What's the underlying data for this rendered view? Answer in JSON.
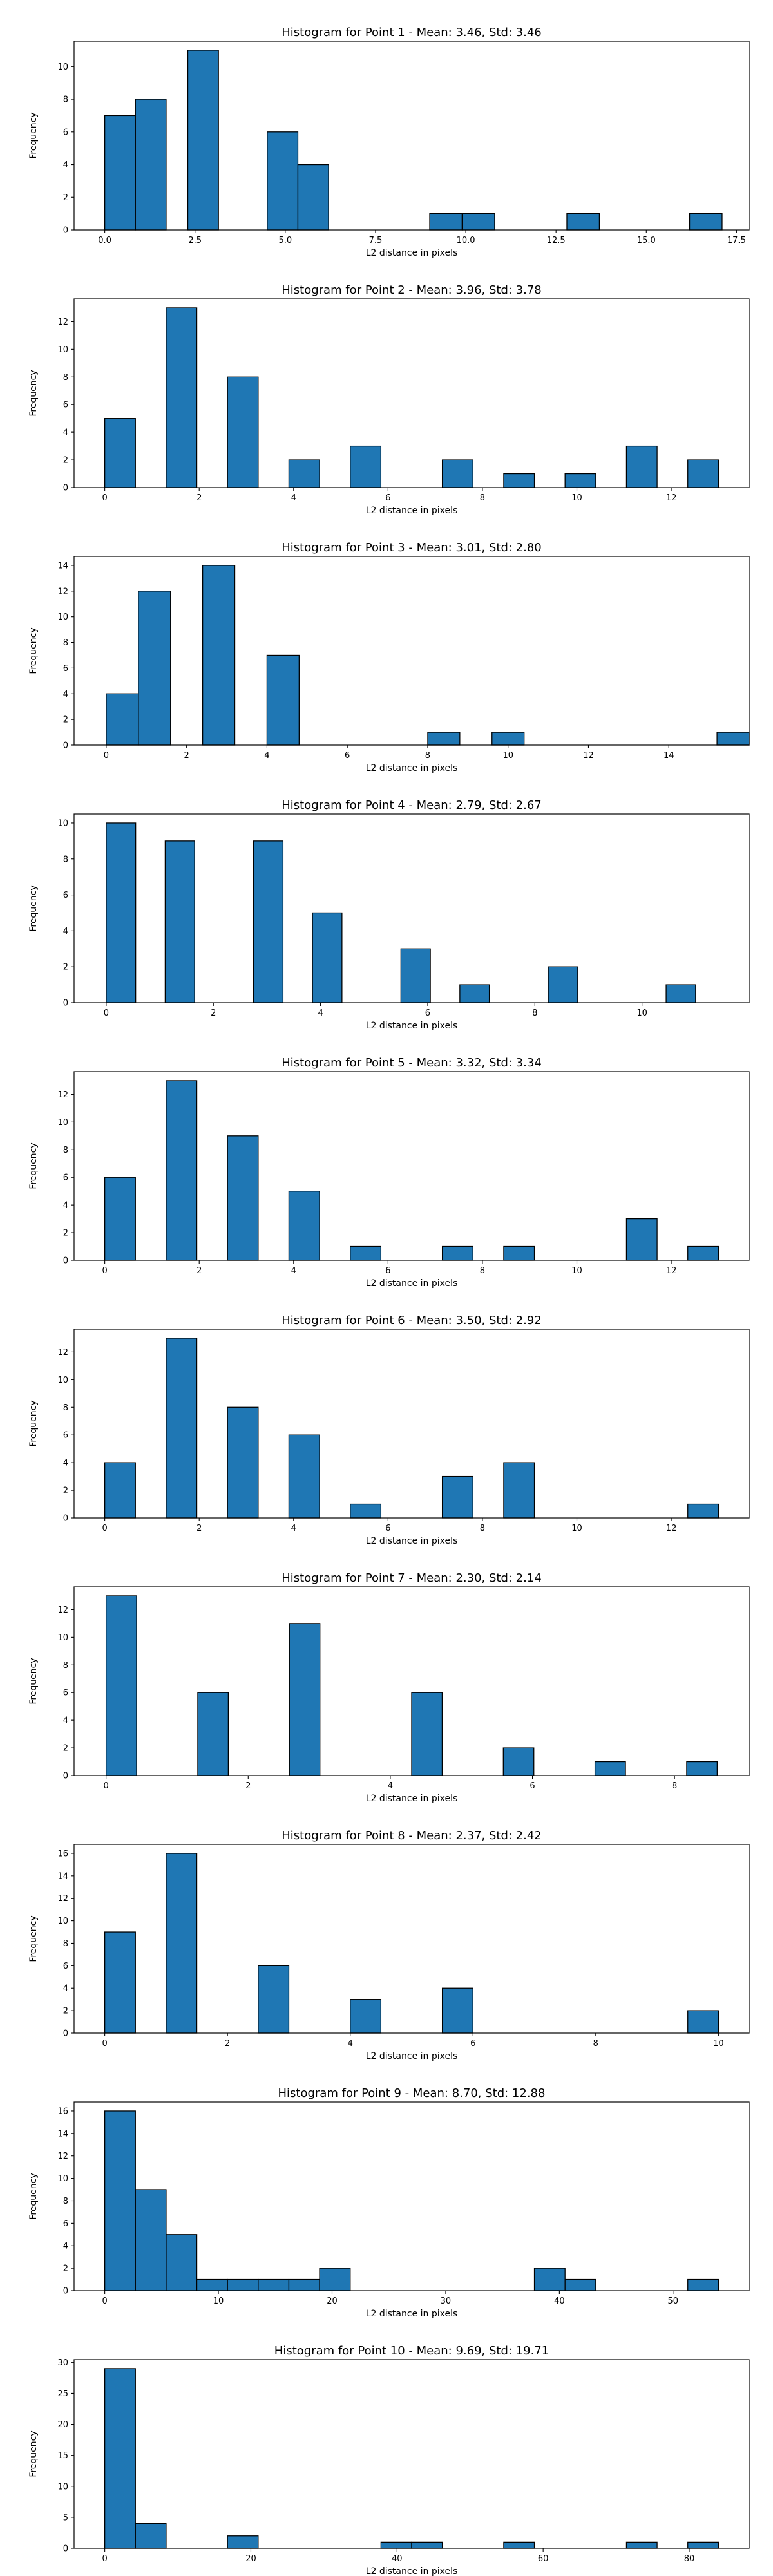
{
  "chart_data": [
    {
      "type": "bar",
      "title": "Histogram for Point 1 - Mean: 3.46, Std: 3.46",
      "xlabel": "L2 distance in pixels",
      "ylabel": "Frequency",
      "xlim": [
        -0.85,
        17.85
      ],
      "ylim": [
        0,
        11.55
      ],
      "xticks": [
        0.0,
        2.5,
        5.0,
        7.5,
        10.0,
        12.5,
        15.0,
        17.5
      ],
      "xtick_labels": [
        "0.0",
        "2.5",
        "5.0",
        "7.5",
        "10.0",
        "12.5",
        "15.0",
        "17.5"
      ],
      "yticks": [
        0,
        2,
        4,
        6,
        8,
        10
      ],
      "bins": [
        [
          0.0,
          0.85,
          7
        ],
        [
          0.85,
          1.7,
          8
        ],
        [
          2.3,
          3.15,
          11
        ],
        [
          4.5,
          5.35,
          6
        ],
        [
          5.35,
          6.2,
          4
        ],
        [
          9.0,
          9.9,
          1
        ],
        [
          9.9,
          10.8,
          1
        ],
        [
          12.8,
          13.7,
          1
        ],
        [
          16.2,
          17.1,
          1
        ]
      ],
      "grid": false,
      "legend": "none"
    },
    {
      "type": "bar",
      "title": "Histogram for Point 2 - Mean: 3.96, Std: 3.78",
      "xlabel": "L2 distance in pixels",
      "ylabel": "Frequency",
      "xlim": [
        -0.65,
        13.65
      ],
      "ylim": [
        0,
        13.65
      ],
      "xticks": [
        0,
        2,
        4,
        6,
        8,
        10,
        12
      ],
      "xtick_labels": [
        "0",
        "2",
        "4",
        "6",
        "8",
        "10",
        "12"
      ],
      "yticks": [
        0,
        2,
        4,
        6,
        8,
        10,
        12
      ],
      "bins": [
        [
          0.0,
          0.65,
          5
        ],
        [
          1.3,
          1.95,
          13
        ],
        [
          2.6,
          3.25,
          8
        ],
        [
          3.9,
          4.55,
          2
        ],
        [
          5.2,
          5.85,
          3
        ],
        [
          7.15,
          7.8,
          2
        ],
        [
          8.45,
          9.1,
          1
        ],
        [
          9.75,
          10.4,
          1
        ],
        [
          11.05,
          11.7,
          3
        ],
        [
          12.35,
          13.0,
          2
        ]
      ],
      "grid": false,
      "legend": "none"
    },
    {
      "type": "bar",
      "title": "Histogram for Point 3 - Mean: 3.01, Std: 2.80",
      "xlabel": "L2 distance in pixels",
      "ylabel": "Frequency",
      "xlim": [
        -0.8,
        16.0
      ],
      "ylim": [
        0,
        14.7
      ],
      "xticks": [
        0,
        2,
        4,
        6,
        8,
        10,
        12,
        14
      ],
      "xtick_labels": [
        "0",
        "2",
        "4",
        "6",
        "8",
        "10",
        "12",
        "14"
      ],
      "yticks": [
        0,
        2,
        4,
        6,
        8,
        10,
        12,
        14
      ],
      "bins": [
        [
          0.0,
          0.8,
          4
        ],
        [
          0.8,
          1.6,
          12
        ],
        [
          2.4,
          3.2,
          14
        ],
        [
          4.0,
          4.8,
          7
        ],
        [
          8.0,
          8.8,
          1
        ],
        [
          9.6,
          10.4,
          1
        ],
        [
          15.2,
          16.0,
          1
        ]
      ],
      "grid": false,
      "legend": "none"
    },
    {
      "type": "bar",
      "title": "Histogram for Point 4 - Mean: 2.79, Std: 2.67",
      "xlabel": "L2 distance in pixels",
      "ylabel": "Frequency",
      "xlim": [
        -0.6,
        12.0
      ],
      "ylim": [
        0,
        10.5
      ],
      "xticks": [
        0,
        2,
        4,
        6,
        8,
        10
      ],
      "xtick_labels": [
        "0",
        "2",
        "4",
        "6",
        "8",
        "10"
      ],
      "yticks": [
        0,
        2,
        4,
        6,
        8,
        10
      ],
      "bins": [
        [
          0.0,
          0.55,
          10
        ],
        [
          1.1,
          1.65,
          9
        ],
        [
          2.75,
          3.3,
          9
        ],
        [
          3.85,
          4.4,
          5
        ],
        [
          5.5,
          6.05,
          3
        ],
        [
          6.6,
          7.15,
          1
        ],
        [
          8.25,
          8.8,
          2
        ],
        [
          10.45,
          11.0,
          1
        ]
      ],
      "grid": false,
      "legend": "none"
    },
    {
      "type": "bar",
      "title": "Histogram for Point 5 - Mean: 3.32, Std: 3.34",
      "xlabel": "L2 distance in pixels",
      "ylabel": "Frequency",
      "xlim": [
        -0.65,
        13.65
      ],
      "ylim": [
        0,
        13.65
      ],
      "xticks": [
        0,
        2,
        4,
        6,
        8,
        10,
        12
      ],
      "xtick_labels": [
        "0",
        "2",
        "4",
        "6",
        "8",
        "10",
        "12"
      ],
      "yticks": [
        0,
        2,
        4,
        6,
        8,
        10,
        12
      ],
      "bins": [
        [
          0.0,
          0.65,
          6
        ],
        [
          1.3,
          1.95,
          13
        ],
        [
          2.6,
          3.25,
          9
        ],
        [
          3.9,
          4.55,
          5
        ],
        [
          5.2,
          5.85,
          1
        ],
        [
          7.15,
          7.8,
          1
        ],
        [
          8.45,
          9.1,
          1
        ],
        [
          11.05,
          11.7,
          3
        ],
        [
          12.35,
          13.0,
          1
        ]
      ],
      "grid": false,
      "legend": "none"
    },
    {
      "type": "bar",
      "title": "Histogram for Point 6 - Mean: 3.50, Std: 2.92",
      "xlabel": "L2 distance in pixels",
      "ylabel": "Frequency",
      "xlim": [
        -0.65,
        13.65
      ],
      "ylim": [
        0,
        13.65
      ],
      "xticks": [
        0,
        2,
        4,
        6,
        8,
        10,
        12
      ],
      "xtick_labels": [
        "0",
        "2",
        "4",
        "6",
        "8",
        "10",
        "12"
      ],
      "yticks": [
        0,
        2,
        4,
        6,
        8,
        10,
        12
      ],
      "bins": [
        [
          0.0,
          0.65,
          4
        ],
        [
          1.3,
          1.95,
          13
        ],
        [
          2.6,
          3.25,
          8
        ],
        [
          3.9,
          4.55,
          6
        ],
        [
          5.2,
          5.85,
          1
        ],
        [
          7.15,
          7.8,
          3
        ],
        [
          8.45,
          9.1,
          4
        ],
        [
          12.35,
          13.0,
          1
        ]
      ],
      "grid": false,
      "legend": "none"
    },
    {
      "type": "bar",
      "title": "Histogram for Point 7 - Mean: 2.30, Std: 2.14",
      "xlabel": "L2 distance in pixels",
      "ylabel": "Frequency",
      "xlim": [
        -0.45,
        9.05
      ],
      "ylim": [
        0,
        13.65
      ],
      "xticks": [
        0,
        2,
        4,
        6,
        8
      ],
      "xtick_labels": [
        "0",
        "2",
        "4",
        "6",
        "8"
      ],
      "yticks": [
        0,
        2,
        4,
        6,
        8,
        10,
        12
      ],
      "bins": [
        [
          0.0,
          0.43,
          13
        ],
        [
          1.29,
          1.72,
          6
        ],
        [
          2.58,
          3.01,
          11
        ],
        [
          4.3,
          4.73,
          6
        ],
        [
          5.59,
          6.02,
          2
        ],
        [
          6.88,
          7.31,
          1
        ],
        [
          8.17,
          8.6,
          1
        ]
      ],
      "grid": false,
      "legend": "none"
    },
    {
      "type": "bar",
      "title": "Histogram for Point 8 - Mean: 2.37, Std: 2.42",
      "xlabel": "L2 distance in pixels",
      "ylabel": "Frequency",
      "xlim": [
        -0.5,
        10.5
      ],
      "ylim": [
        0,
        16.8
      ],
      "xticks": [
        0,
        2,
        4,
        6,
        8,
        10
      ],
      "xtick_labels": [
        "0",
        "2",
        "4",
        "6",
        "8",
        "10"
      ],
      "yticks": [
        0,
        2,
        4,
        6,
        8,
        10,
        12,
        14,
        16
      ],
      "bins": [
        [
          0.0,
          0.5,
          9
        ],
        [
          1.0,
          1.5,
          16
        ],
        [
          2.5,
          3.0,
          6
        ],
        [
          4.0,
          4.5,
          3
        ],
        [
          5.5,
          6.0,
          4
        ],
        [
          9.5,
          10.0,
          2
        ]
      ],
      "grid": false,
      "legend": "none"
    },
    {
      "type": "bar",
      "title": "Histogram for Point 9 - Mean: 8.70, Std: 12.88",
      "xlabel": "L2 distance in pixels",
      "ylabel": "Frequency",
      "xlim": [
        -2.7,
        56.7
      ],
      "ylim": [
        0,
        16.8
      ],
      "xticks": [
        0,
        10,
        20,
        30,
        40,
        50
      ],
      "xtick_labels": [
        "0",
        "10",
        "20",
        "30",
        "40",
        "50"
      ],
      "yticks": [
        0,
        2,
        4,
        6,
        8,
        10,
        12,
        14,
        16
      ],
      "bins": [
        [
          0.0,
          2.7,
          16
        ],
        [
          2.7,
          5.4,
          9
        ],
        [
          5.4,
          8.1,
          5
        ],
        [
          8.1,
          10.8,
          1
        ],
        [
          10.8,
          13.5,
          1
        ],
        [
          13.5,
          16.2,
          1
        ],
        [
          16.2,
          18.9,
          1
        ],
        [
          18.9,
          21.6,
          2
        ],
        [
          37.8,
          40.5,
          2
        ],
        [
          40.5,
          43.2,
          1
        ],
        [
          51.3,
          54.0,
          1
        ]
      ],
      "grid": false,
      "legend": "none"
    },
    {
      "type": "bar",
      "title": "Histogram for Point 10 - Mean: 9.69, Std: 19.71",
      "xlabel": "L2 distance in pixels",
      "ylabel": "Frequency",
      "xlim": [
        -4.2,
        88.2
      ],
      "ylim": [
        0,
        30.45
      ],
      "xticks": [
        0,
        20,
        40,
        60,
        80
      ],
      "xtick_labels": [
        "0",
        "20",
        "40",
        "60",
        "80"
      ],
      "yticks": [
        0,
        5,
        10,
        15,
        20,
        25,
        30
      ],
      "bins": [
        [
          0.0,
          4.2,
          29
        ],
        [
          4.2,
          8.4,
          4
        ],
        [
          16.8,
          21.0,
          2
        ],
        [
          37.8,
          42.0,
          1
        ],
        [
          42.0,
          46.2,
          1
        ],
        [
          54.6,
          58.8,
          1
        ],
        [
          71.4,
          75.6,
          1
        ],
        [
          79.8,
          84.0,
          1
        ]
      ],
      "grid": false,
      "legend": "none"
    }
  ]
}
